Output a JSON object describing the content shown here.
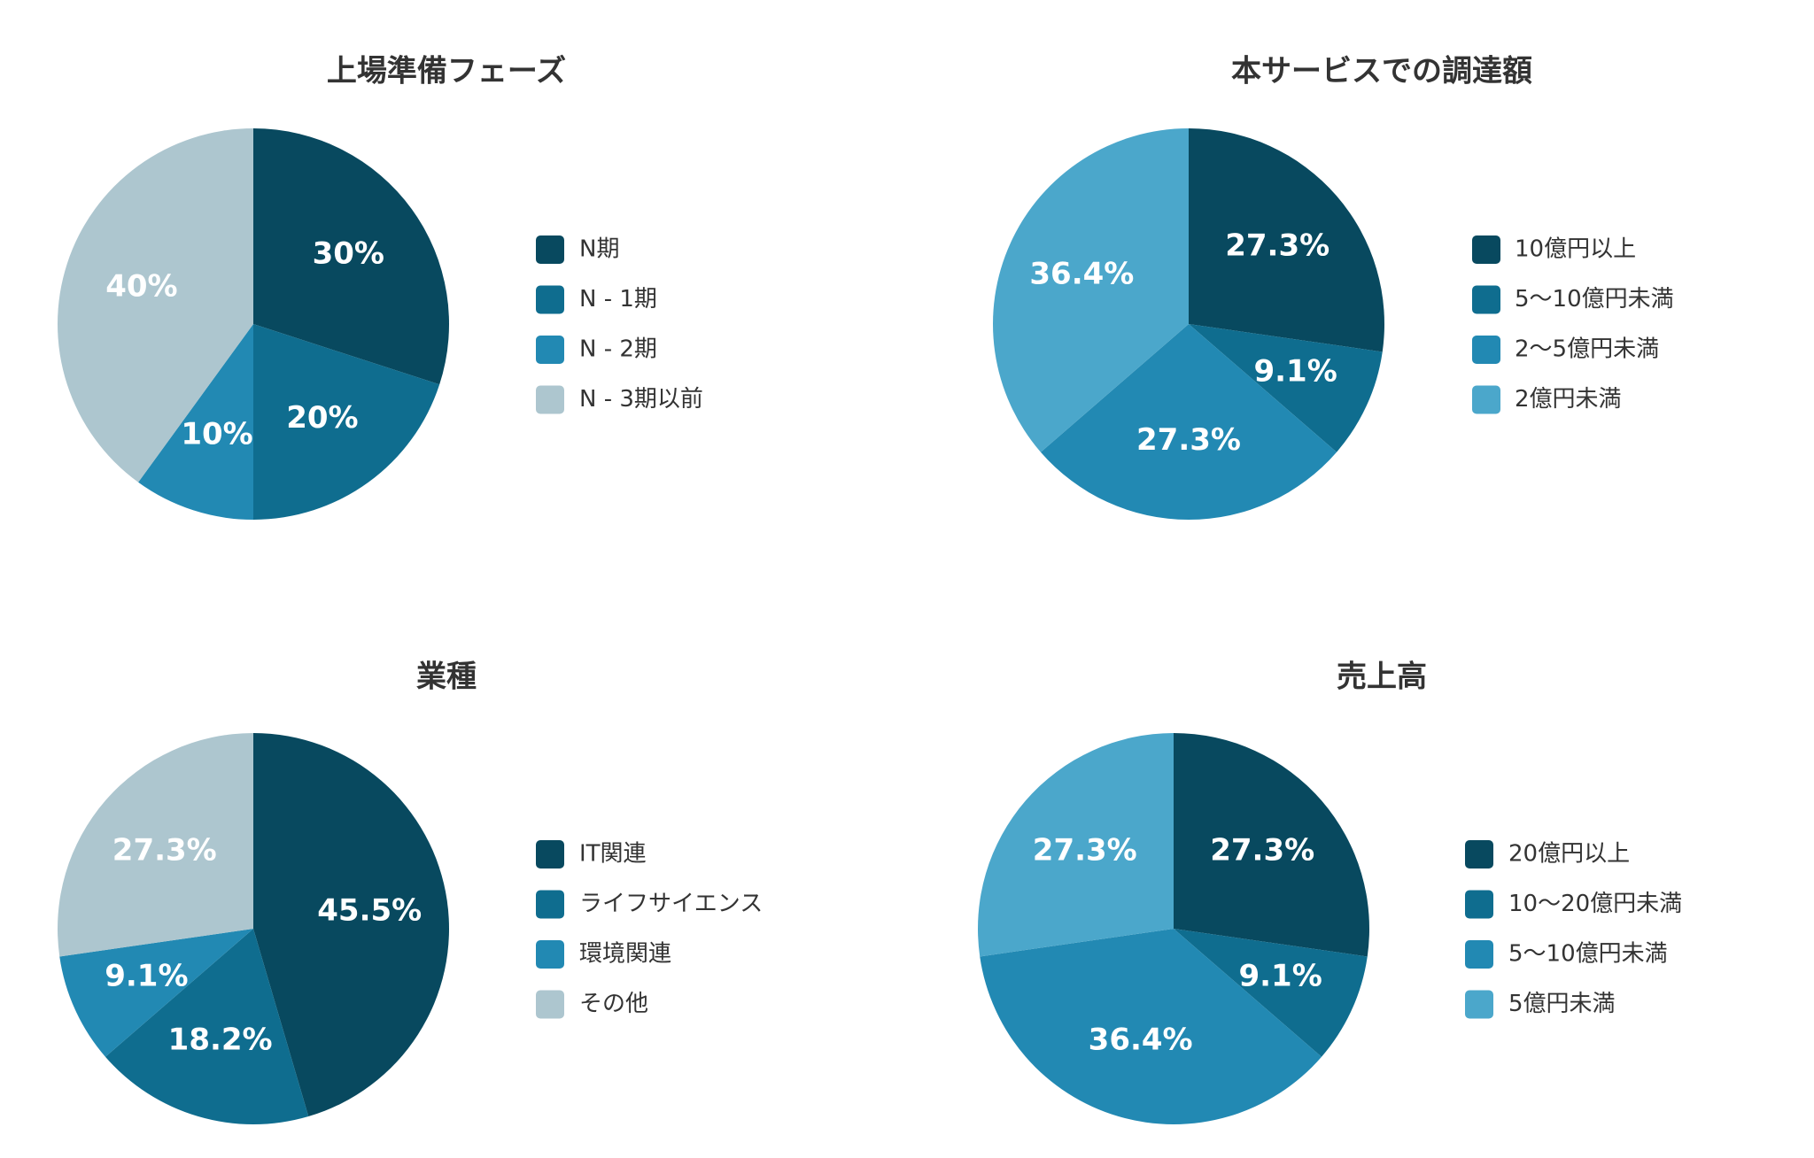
{
  "chart_data": [
    {
      "type": "pie",
      "title": "上場準備フェーズ",
      "categories": [
        "N期",
        "N - 1期",
        "N - 2期",
        "N - 3期以前"
      ],
      "values": [
        30,
        20,
        10,
        40
      ],
      "value_labels": [
        "30%",
        "20%",
        "10%",
        "40%"
      ],
      "colors": [
        "#08495f",
        "#0f6d8f",
        "#2289b3",
        "#adc6cf"
      ]
    },
    {
      "type": "pie",
      "title": "本サービスでの調達額",
      "categories": [
        "10億円以上",
        "5〜10億円未満",
        "2〜5億円未満",
        "2億円未満"
      ],
      "values": [
        27.3,
        9.1,
        27.3,
        36.4
      ],
      "value_labels": [
        "27.3%",
        "9.1%",
        "27.3%",
        "36.4%"
      ],
      "colors": [
        "#08495f",
        "#0f6d8f",
        "#2289b3",
        "#4ba7cb"
      ]
    },
    {
      "type": "pie",
      "title": "業種",
      "categories": [
        "IT関連",
        "ライフサイエンス",
        "環境関連",
        "その他"
      ],
      "values": [
        45.5,
        18.2,
        9.1,
        27.3
      ],
      "value_labels": [
        "45.5%",
        "18.2%",
        "9.1%",
        "27.3%"
      ],
      "colors": [
        "#08495f",
        "#0f6d8f",
        "#2289b3",
        "#adc6cf"
      ]
    },
    {
      "type": "pie",
      "title": "売上高",
      "categories": [
        "20億円以上",
        "10〜20億円未満",
        "5〜10億円未満",
        "5億円未満"
      ],
      "values": [
        27.3,
        9.1,
        36.4,
        27.3
      ],
      "value_labels": [
        "27.3%",
        "9.1%",
        "36.4%",
        "27.3%"
      ],
      "colors": [
        "#08495f",
        "#0f6d8f",
        "#2289b3",
        "#4ba7cb"
      ]
    }
  ]
}
